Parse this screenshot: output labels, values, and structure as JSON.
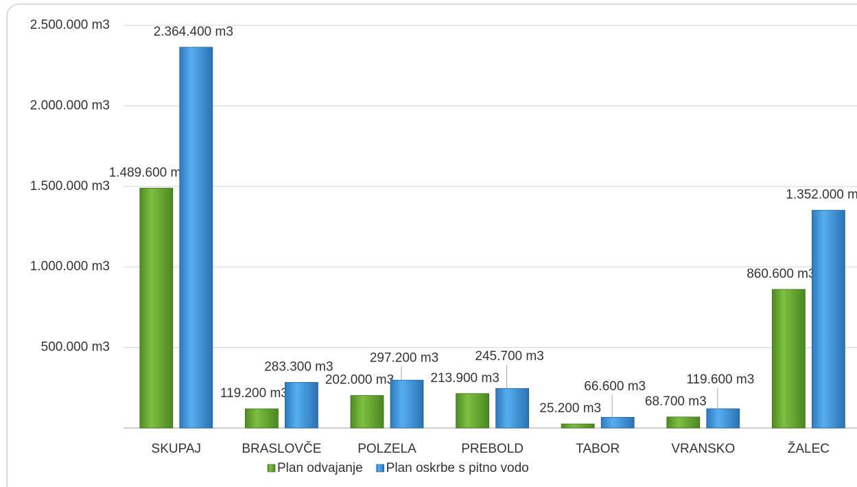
{
  "chart_data": {
    "type": "bar",
    "categories": [
      "SKUPAJ",
      "BRASLOVČE",
      "POLZELA",
      "PREBOLD",
      "TABOR",
      "VRANSKO",
      "ŽALEC"
    ],
    "series": [
      {
        "name": "Plan odvajanje",
        "color": "#6aac35",
        "values": [
          1489600,
          119200,
          202000,
          213900,
          25200,
          68700,
          860600
        ],
        "value_labels": [
          "1.489.600 m3",
          "119.200 m3",
          "202.000 m3",
          "213.900 m3",
          "25.200 m3",
          "68.700 m3",
          "860.600 m3"
        ]
      },
      {
        "name": "Plan oskrbe s pitno vodo",
        "color": "#3f95dd",
        "values": [
          2364400,
          283300,
          297200,
          245700,
          66600,
          119600,
          1352000
        ],
        "value_labels": [
          "2.364.400 m3",
          "283.300 m3",
          "297.200 m3",
          "245.700 m3",
          "66.600 m3",
          "119.600 m3",
          "1.352.000 m3"
        ]
      }
    ],
    "ylim": [
      0,
      2500000
    ],
    "yticks": [
      {
        "value": 500000,
        "label": "500.000 m3"
      },
      {
        "value": 1000000,
        "label": "1.000.000 m3"
      },
      {
        "value": 1500000,
        "label": "1.500.000 m3"
      },
      {
        "value": 2000000,
        "label": "2.000.000 m3"
      },
      {
        "value": 2500000,
        "label": "2.500.000 m3"
      }
    ],
    "grid": true,
    "legend": "bottom"
  }
}
